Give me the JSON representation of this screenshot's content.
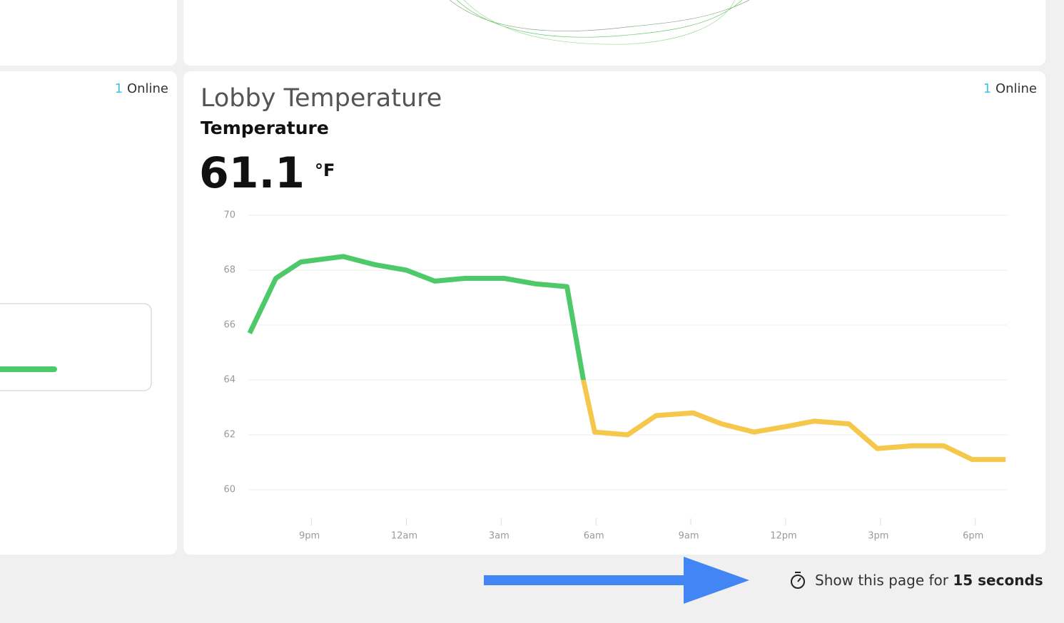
{
  "left_card": {
    "online_count": 1,
    "online_label": "Online"
  },
  "card": {
    "title": "Lobby Temperature",
    "subtitle": "Temperature",
    "current_value": "61.1",
    "unit": "°F",
    "online_count": 1,
    "online_label": "Online"
  },
  "chart_data": {
    "type": "line",
    "x": [
      19.04,
      19.87,
      20.66,
      22.0,
      23.0,
      24.0,
      24.9,
      25.85,
      27.1,
      28.1,
      29.08,
      29.6,
      29.96,
      31.0,
      31.9,
      33.07,
      33.97,
      35.0,
      36.0,
      36.9,
      38.0,
      38.9,
      40.0,
      41.0,
      41.9,
      42.96
    ],
    "values": [
      65.7,
      67.7,
      68.3,
      68.5,
      68.2,
      68.0,
      67.6,
      67.7,
      67.7,
      67.5,
      67.4,
      64.0,
      62.1,
      62.0,
      62.7,
      62.8,
      62.4,
      62.1,
      62.3,
      62.5,
      62.4,
      61.5,
      61.6,
      61.6,
      61.1,
      61.1
    ],
    "threshold": 64,
    "color_above": "#4ec96a",
    "color_below": "#f5c84c",
    "xlim": [
      19,
      43
    ],
    "xticks": [
      {
        "value": 21,
        "label": "9pm"
      },
      {
        "value": 24,
        "label": "12am"
      },
      {
        "value": 27,
        "label": "3am"
      },
      {
        "value": 30,
        "label": "6am"
      },
      {
        "value": 33,
        "label": "9am"
      },
      {
        "value": 36,
        "label": "12pm"
      },
      {
        "value": 39,
        "label": "3pm"
      },
      {
        "value": 42,
        "label": "6pm"
      }
    ],
    "ylim": [
      60,
      70
    ],
    "yticks": [
      60,
      62,
      64,
      66,
      68,
      70
    ],
    "grid": true
  },
  "footer": {
    "text": "Show this page for",
    "duration": "15 seconds"
  }
}
